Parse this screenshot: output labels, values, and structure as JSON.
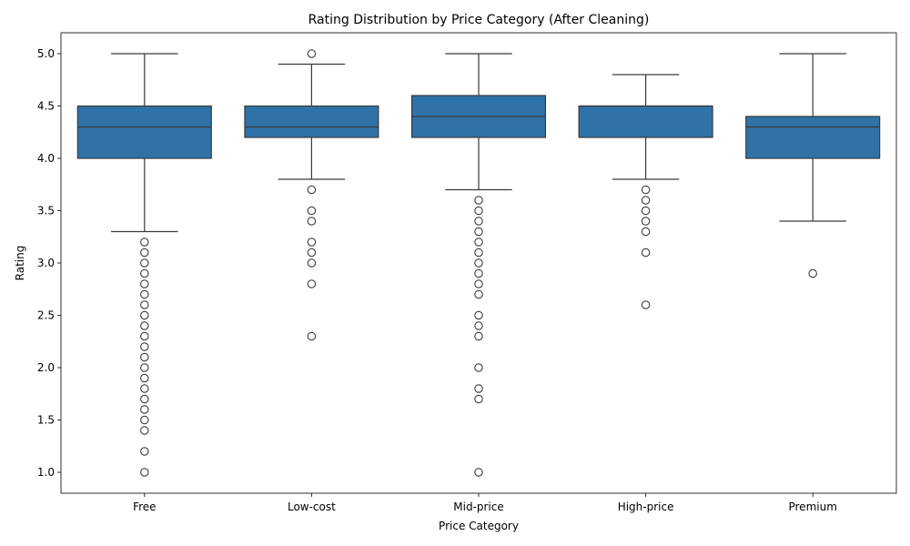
{
  "chart_data": {
    "type": "box",
    "title": "Rating Distribution by Price Category (After Cleaning)",
    "xlabel": "Price Category",
    "ylabel": "Rating",
    "ylim": [
      0.8,
      5.2
    ],
    "yticks": [
      "1.0",
      "1.5",
      "2.0",
      "2.5",
      "3.0",
      "3.5",
      "4.0",
      "4.5",
      "5.0"
    ],
    "grid": false,
    "box_color": "#2f72a8",
    "line_color": "#3a3a3a",
    "categories": [
      "Free",
      "Low-cost",
      "Mid-price",
      "High-price",
      "Premium"
    ],
    "boxes": [
      {
        "category": "Free",
        "whisker_low": 3.3,
        "q1": 4.0,
        "median": 4.3,
        "q3": 4.5,
        "whisker_high": 5.0,
        "outliers": [
          3.2,
          3.1,
          3.0,
          2.9,
          2.8,
          2.7,
          2.6,
          2.5,
          2.4,
          2.3,
          2.2,
          2.1,
          2.0,
          1.9,
          1.8,
          1.7,
          1.6,
          1.5,
          1.4,
          1.2,
          1.0
        ]
      },
      {
        "category": "Low-cost",
        "whisker_low": 3.8,
        "q1": 4.2,
        "median": 4.3,
        "q3": 4.5,
        "whisker_high": 4.9,
        "outliers": [
          5.0,
          3.7,
          3.5,
          3.4,
          3.2,
          3.1,
          3.0,
          2.8,
          2.3
        ]
      },
      {
        "category": "Mid-price",
        "whisker_low": 3.7,
        "q1": 4.2,
        "median": 4.4,
        "q3": 4.6,
        "whisker_high": 5.0,
        "outliers": [
          3.6,
          3.5,
          3.4,
          3.3,
          3.2,
          3.1,
          3.0,
          2.9,
          2.8,
          2.7,
          2.5,
          2.4,
          2.3,
          2.0,
          1.8,
          1.7,
          1.0
        ]
      },
      {
        "category": "High-price",
        "whisker_low": 3.8,
        "q1": 4.2,
        "median": 4.5,
        "q3": 4.5,
        "whisker_high": 4.8,
        "outliers": [
          3.7,
          3.6,
          3.5,
          3.4,
          3.3,
          3.1,
          2.6
        ]
      },
      {
        "category": "Premium",
        "whisker_low": 3.4,
        "q1": 4.0,
        "median": 4.3,
        "q3": 4.4,
        "whisker_high": 5.0,
        "outliers": [
          2.9
        ]
      }
    ]
  }
}
